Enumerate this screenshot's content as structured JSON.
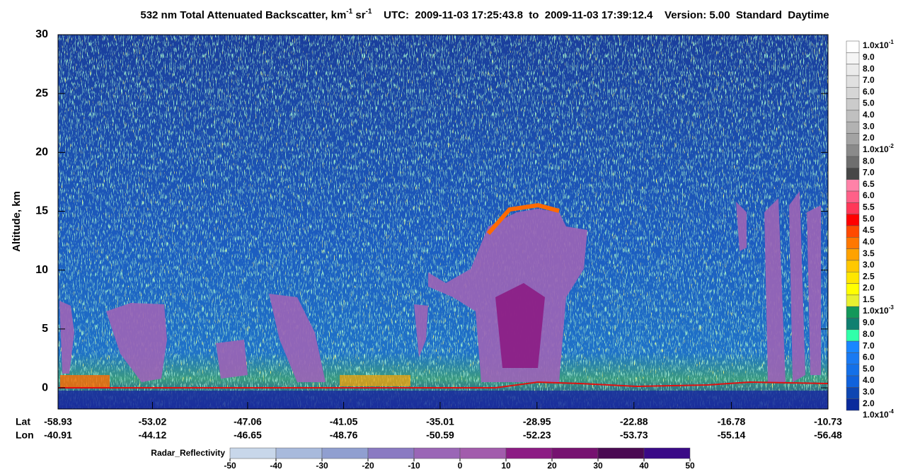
{
  "chart_data": {
    "type": "curtain",
    "title": [
      "532 nm Total Attenuated Backscatter, km",
      "-1",
      " sr",
      "-1"
    ],
    "time_range": "UTC:  2009-11-03 17:25:43.8  to  2009-11-03 17:39:12.4",
    "version": "Version: 5.00  Standard  Daytime",
    "ylabel": "Altitude, km",
    "ylim": [
      -1.8,
      30
    ],
    "yticks": [
      0,
      5,
      10,
      15,
      20,
      25,
      30
    ],
    "xlabel": "Lat",
    "x2label": "Lon",
    "xlim": [
      -58.93,
      -10.73
    ],
    "xticks": [
      -58.93,
      -53.02,
      -47.06,
      -41.05,
      -35.01,
      -28.95,
      -22.88,
      -16.78,
      -10.73
    ],
    "x2ticks": [
      -40.91,
      -44.12,
      -46.65,
      -48.76,
      -50.59,
      -52.23,
      -53.73,
      -55.14,
      -56.48
    ],
    "colorbar": {
      "labels": [
        {
          "text": "1.0x10",
          "sup": "-1"
        },
        "9.0",
        "8.0",
        "7.0",
        "6.0",
        "5.0",
        "4.0",
        "3.0",
        "2.0",
        {
          "text": "1.0x10",
          "sup": "-2"
        },
        "8.0",
        "7.0",
        "6.5",
        "6.0",
        "5.5",
        "5.0",
        "4.5",
        "4.0",
        "3.5",
        "3.0",
        "2.5",
        "2.0",
        "1.5",
        {
          "text": "1.0x10",
          "sup": "-3"
        },
        "9.0",
        "8.0",
        "7.0",
        "6.0",
        "5.0",
        "4.0",
        "3.0",
        "2.0",
        {
          "text": "1.0x10",
          "sup": "-4"
        }
      ],
      "colors": [
        "#ffffff",
        "#f5f5f5",
        "#ebebeb",
        "#e0e0e0",
        "#d6d6d6",
        "#cbcbcb",
        "#c0c0c0",
        "#b2b2b2",
        "#a3a3a3",
        "#8a8a8a",
        "#6e6e6e",
        "#474747",
        "#ff82a8",
        "#ff6088",
        "#ff3858",
        "#ff0000",
        "#ff4a00",
        "#ff7800",
        "#ffa200",
        "#ffc800",
        "#ffe600",
        "#ffff00",
        "#e8f030",
        "#13985a",
        "#108070",
        "#30ffaa",
        "#1a86ff",
        "#1a7af2",
        "#1470e8",
        "#1062dc",
        "#0e46b2",
        "#0a2a9c"
      ]
    },
    "radar": {
      "label": "Radar_Reflectivity",
      "ticks": [
        -50,
        -40,
        -30,
        -20,
        -10,
        0,
        10,
        20,
        30,
        40,
        50
      ],
      "colors": [
        "#c8d7ea",
        "#a8badc",
        "#909fd0",
        "#8a7ac2",
        "#9a66b6",
        "#a25cac",
        "#8c1c84",
        "#761270",
        "#4a0a52",
        "#3a0a86"
      ]
    }
  }
}
